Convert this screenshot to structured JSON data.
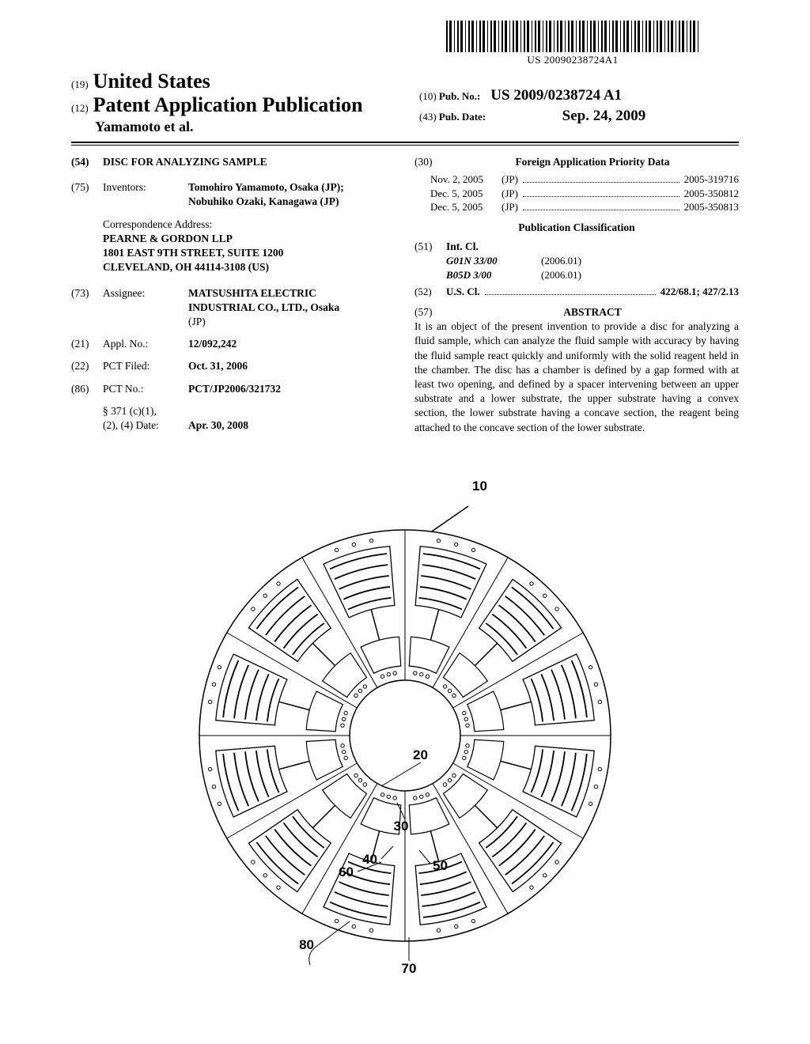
{
  "barcode_number": "US 20090238724A1",
  "header": {
    "inid19": "(19)",
    "country": "United States",
    "inid12": "(12)",
    "doc_type": "Patent Application Publication",
    "authors": "Yamamoto et al.",
    "inid10": "(10)",
    "pubno_label": "Pub. No.:",
    "pubno": "US 2009/0238724 A1",
    "inid43": "(43)",
    "pubdate_label": "Pub. Date:",
    "pubdate": "Sep. 24, 2009"
  },
  "title": {
    "inid": "(54)",
    "text": "DISC FOR ANALYZING SAMPLE"
  },
  "inventors": {
    "inid": "(75)",
    "label": "Inventors:",
    "line1": "Tomohiro Yamamoto, Osaka (JP);",
    "line2": "Nobuhiko Ozaki, Kanagawa (JP)"
  },
  "correspondence": {
    "label": "Correspondence Address:",
    "line1": "PEARNE & GORDON LLP",
    "line2": "1801 EAST 9TH STREET, SUITE 1200",
    "line3": "CLEVELAND, OH 44114-3108 (US)"
  },
  "assignee": {
    "inid": "(73)",
    "label": "Assignee:",
    "line1": "MATSUSHITA ELECTRIC",
    "line2": "INDUSTRIAL CO., LTD., Osaka",
    "line3": "(JP)"
  },
  "applno": {
    "inid": "(21)",
    "label": "Appl. No.:",
    "value": "12/092,242"
  },
  "pctfiled": {
    "inid": "(22)",
    "label": "PCT Filed:",
    "value": "Oct. 31, 2006"
  },
  "pctno": {
    "inid": "(86)",
    "label": "PCT No.:",
    "value": "PCT/JP2006/321732"
  },
  "s371": {
    "label1": "§ 371 (c)(1),",
    "label2": "(2), (4) Date:",
    "value": "Apr. 30, 2008"
  },
  "foreign_priority": {
    "inid": "(30)",
    "title": "Foreign Application Priority Data",
    "rows": [
      {
        "date": "Nov. 2, 2005",
        "cc": "(JP)",
        "num": "2005-319716"
      },
      {
        "date": "Dec. 5, 2005",
        "cc": "(JP)",
        "num": "2005-350812"
      },
      {
        "date": "Dec. 5, 2005",
        "cc": "(JP)",
        "num": "2005-350813"
      }
    ]
  },
  "pub_class_title": "Publication Classification",
  "intcl": {
    "inid": "(51)",
    "label": "Int. Cl.",
    "rows": [
      {
        "code": "G01N 33/00",
        "year": "(2006.01)"
      },
      {
        "code": "B05D 3/00",
        "year": "(2006.01)"
      }
    ]
  },
  "uscl": {
    "inid": "(52)",
    "label": "U.S. Cl.",
    "value": "422/68.1; 427/2.13"
  },
  "abstract": {
    "inid": "(57)",
    "title": "ABSTRACT",
    "text": "It is an object of the present invention to provide a disc for analyzing a fluid sample, which can analyze the fluid sample with accuracy by having the fluid sample react quickly and uniformly with the solid reagent held in the chamber. The disc has a chamber is defined by a gap formed with at least two opening, and defined by a spacer intervening between an upper substrate and a lower substrate, the upper substrate having a convex section, the lower substrate having a concave section, the reagent being attached to the concave section of the lower substrate."
  },
  "figure": {
    "labels": {
      "10": "10",
      "20": "20",
      "30": "30",
      "40": "40",
      "50": "50",
      "60": "60",
      "70": "70",
      "80": "80"
    },
    "outer_radius": 260,
    "inner_radius": 70,
    "n_segments": 12,
    "stroke": "#000000",
    "fill": "#ffffff",
    "stroke_width": 1.5
  }
}
